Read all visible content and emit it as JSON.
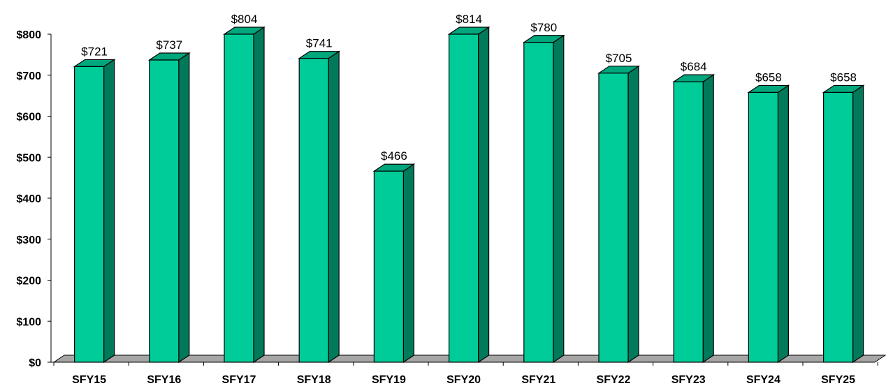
{
  "chart_data": {
    "type": "bar",
    "title": "",
    "xlabel": "",
    "ylabel": "",
    "categories": [
      "SFY15",
      "SFY16",
      "SFY17",
      "SFY18",
      "SFY19",
      "SFY20",
      "SFY21",
      "SFY22",
      "SFY23",
      "SFY24",
      "SFY25"
    ],
    "values": [
      721,
      737,
      804,
      741,
      466,
      814,
      780,
      705,
      684,
      658,
      658
    ],
    "value_labels": [
      "$721",
      "$737",
      "$804",
      "$741",
      "$466",
      "$814",
      "$780",
      "$705",
      "$684",
      "$658",
      "$658"
    ],
    "ylim": [
      0,
      800
    ],
    "y_ticks": [
      0,
      100,
      200,
      300,
      400,
      500,
      600,
      700,
      800
    ],
    "y_tick_labels": [
      "$0",
      "$100",
      "$200",
      "$300",
      "$400",
      "$500",
      "$600",
      "$700",
      "$800"
    ],
    "grid": false,
    "legend": "none",
    "style": "3d-column",
    "colors": {
      "bar_front": "#00cc99",
      "bar_top": "#00a67c",
      "bar_side": "#007a5a",
      "floor": "#a6a6a6",
      "outline": "#000000"
    }
  }
}
